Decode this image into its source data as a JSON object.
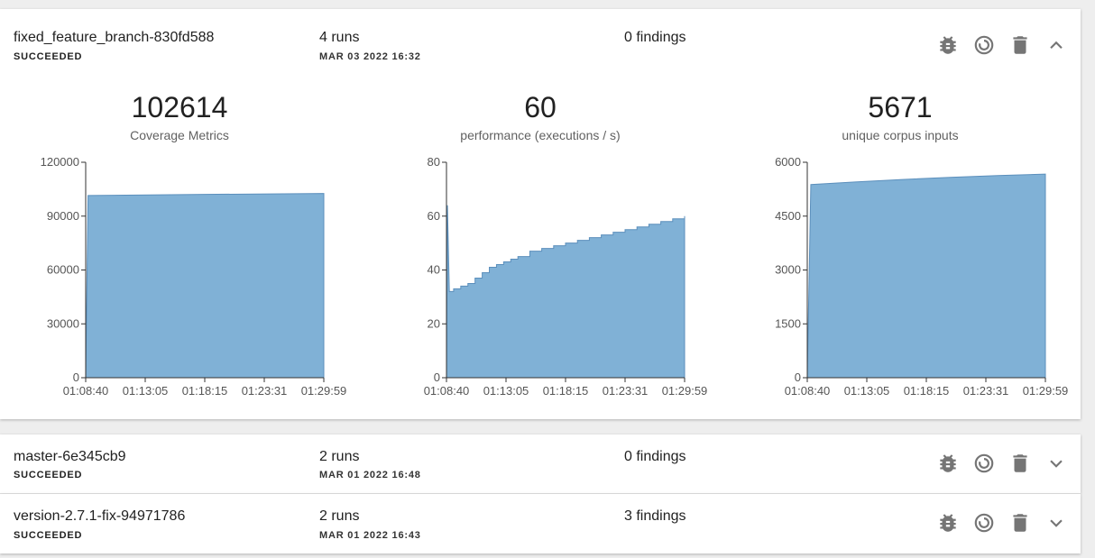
{
  "colors": {
    "area_fill": "#80b1d6",
    "area_stroke": "#5b8fbc",
    "icon": "#757575"
  },
  "icons": {
    "bug": "bug-icon",
    "refresh": "loop-icon",
    "delete": "trash-icon",
    "expand": "chevron-icon"
  },
  "branches": [
    {
      "name": "fixed_feature_branch-830fd588",
      "status": "SUCCEEDED",
      "runs": "4 runs",
      "date": "MAR 03 2022 16:32",
      "findings": "0 findings",
      "expanded": true
    },
    {
      "name": "master-6e345cb9",
      "status": "SUCCEEDED",
      "runs": "2 runs",
      "date": "MAR 01 2022 16:48",
      "findings": "0 findings",
      "expanded": false
    },
    {
      "name": "version-2.7.1-fix-94971786",
      "status": "SUCCEEDED",
      "runs": "2 runs",
      "date": "MAR 01 2022 16:43",
      "findings": "3 findings",
      "expanded": false
    }
  ],
  "metrics": [
    {
      "value": "102614",
      "label": "Coverage Metrics"
    },
    {
      "value": "60",
      "label": "performance (executions / s)"
    },
    {
      "value": "5671",
      "label": "unique corpus inputs"
    }
  ],
  "chart_data": [
    {
      "type": "area",
      "title": "Coverage Metrics",
      "x_ticks": [
        "01:08:40",
        "01:13:05",
        "01:18:15",
        "01:23:31",
        "01:29:59"
      ],
      "y_ticks": [
        "0",
        "30000",
        "60000",
        "90000",
        "120000"
      ],
      "ylim": [
        0,
        120000
      ],
      "x": [
        0,
        0.01,
        0.5,
        1.0
      ],
      "y": [
        0,
        101500,
        102100,
        102614
      ]
    },
    {
      "type": "area",
      "title": "performance (executions / s)",
      "x_ticks": [
        "01:08:40",
        "01:13:05",
        "01:18:15",
        "01:23:31",
        "01:29:59"
      ],
      "y_ticks": [
        "0",
        "20",
        "40",
        "60",
        "80"
      ],
      "ylim": [
        0,
        80
      ],
      "x": [
        0,
        0.004,
        0.012,
        0.03,
        0.06,
        0.09,
        0.12,
        0.15,
        0.18,
        0.21,
        0.24,
        0.27,
        0.3,
        0.35,
        0.4,
        0.45,
        0.5,
        0.55,
        0.6,
        0.65,
        0.7,
        0.75,
        0.8,
        0.85,
        0.9,
        0.95,
        1.0
      ],
      "y": [
        0,
        64,
        32,
        33,
        34,
        35,
        37,
        39,
        41,
        42,
        43,
        44,
        45,
        47,
        48,
        49,
        50,
        51,
        52,
        53,
        54,
        55,
        56,
        57,
        58,
        59,
        60
      ]
    },
    {
      "type": "area",
      "title": "unique corpus inputs",
      "x_ticks": [
        "01:08:40",
        "01:13:05",
        "01:18:15",
        "01:23:31",
        "01:29:59"
      ],
      "y_ticks": [
        "0",
        "1500",
        "3000",
        "4500",
        "6000"
      ],
      "ylim": [
        0,
        6000
      ],
      "x": [
        0,
        0.015,
        0.2,
        0.4,
        0.6,
        0.8,
        1.0
      ],
      "y": [
        0,
        5380,
        5450,
        5520,
        5580,
        5630,
        5671
      ]
    }
  ]
}
